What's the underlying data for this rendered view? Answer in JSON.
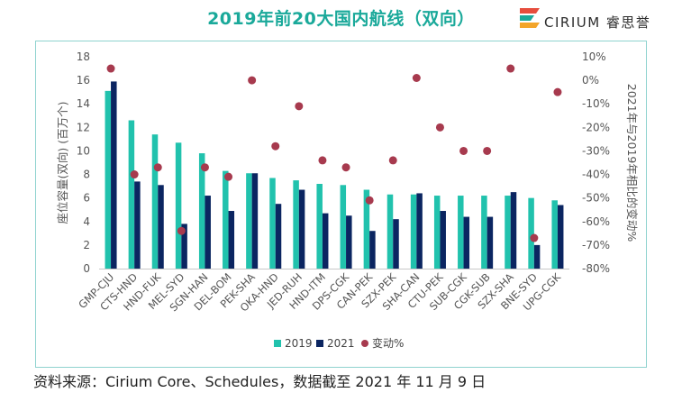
{
  "header": {
    "title": "2019年前20大国内航线（双向）",
    "brand": "CIRIUM 睿思誉"
  },
  "footer": {
    "source": "资料来源：Cirium Core、Schedules，数据截至 2021 年 11 月 9 日"
  },
  "colors": {
    "series_2019": "#21c2ad",
    "series_2021": "#0b2561",
    "change": "#a73a4e",
    "title": "#1aa99a"
  },
  "chart_data": {
    "type": "bar",
    "categories": [
      "GMP-CJU",
      "CTS-HND",
      "HND-FUK",
      "MEL-SYD",
      "SGN-HAN",
      "DEL-BOM",
      "PEK-SHA",
      "OKA-HND",
      "JED-RUH",
      "HND-ITM",
      "DPS-CGK",
      "CAN-PEK",
      "SZX-PEK",
      "SHA-CAN",
      "CTU-PEK",
      "SUB-CGK",
      "CGK-SUB",
      "SZX-SHA",
      "BNE-SYD",
      "UPG-CGK"
    ],
    "series": [
      {
        "name": "2019",
        "axis": "left",
        "kind": "bar",
        "values": [
          15.1,
          12.6,
          11.4,
          10.7,
          9.8,
          8.3,
          8.1,
          7.7,
          7.5,
          7.2,
          7.1,
          6.7,
          6.3,
          6.3,
          6.2,
          6.2,
          6.2,
          6.2,
          6.0,
          5.8
        ]
      },
      {
        "name": "2021",
        "axis": "left",
        "kind": "bar",
        "values": [
          15.9,
          7.4,
          7.1,
          3.8,
          6.2,
          4.9,
          8.1,
          5.5,
          6.7,
          4.7,
          4.5,
          3.2,
          4.2,
          6.4,
          4.9,
          4.4,
          4.4,
          6.5,
          2.0,
          5.4
        ]
      },
      {
        "name": "变动%",
        "axis": "right",
        "kind": "scatter",
        "values": [
          5,
          -40,
          -37,
          -64,
          -37,
          -41,
          0,
          -28,
          -11,
          -34,
          -37,
          -51,
          -34,
          1,
          -20,
          -30,
          -30,
          5,
          -67,
          -5
        ]
      }
    ],
    "ylabel": "座位容量(双向) (百万个)",
    "ylim": [
      0,
      18
    ],
    "yticks": [
      0,
      2,
      4,
      6,
      8,
      10,
      12,
      14,
      16,
      18
    ],
    "y2label": "2021年与2019年相比的变动%",
    "y2lim": [
      -80,
      10
    ],
    "y2ticks": [
      "10%",
      "0%",
      "-10%",
      "-20%",
      "-30%",
      "-40%",
      "-50%",
      "-60%",
      "-70%",
      "-80%"
    ],
    "legend": [
      "2019",
      "2021",
      "变动%"
    ],
    "legend_position": "bottom",
    "grid": false
  }
}
